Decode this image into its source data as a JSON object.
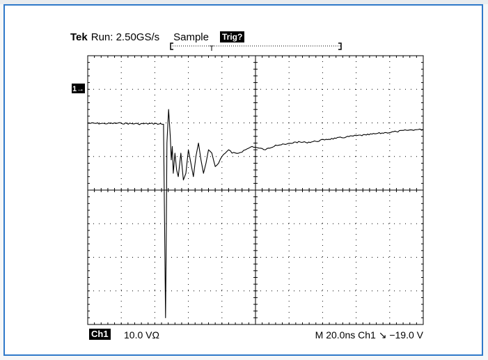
{
  "header": {
    "brand": "Tek",
    "run_status": "Run: 2.50GS/s",
    "acquire_mode": "Sample",
    "trigger_status": "Trig?"
  },
  "footer": {
    "channel": "Ch1",
    "volts_per_div": "10.0 VΩ",
    "timebase_trigger": "M 20.0ns  Ch1 ↘  −19.0 V"
  },
  "trigger_marker": "T",
  "channel_marker": "1→",
  "colors": {
    "frame": "#2f79c9",
    "trace": "#000000",
    "grid": "#000000"
  },
  "chart_data": {
    "type": "line",
    "title": "",
    "xlabel": "",
    "ylabel": "",
    "grid": true,
    "x_unit": "ns",
    "y_unit": "V",
    "xlim": [
      -46,
      154
    ],
    "ylim": [
      -40,
      40
    ],
    "x_divisions": 10,
    "y_divisions": 8,
    "series": [
      {
        "x": [
          -46,
          -36,
          -26,
          -16,
          -6,
          -0.8,
          0.4,
          0.8,
          1.2,
          1.8,
          2.2,
          2.6,
          3.2,
          3.8,
          4.4,
          5,
          6,
          7,
          8,
          9.5,
          11,
          12.5,
          14,
          15.5,
          17,
          18.5,
          20,
          21.5,
          23,
          24.5,
          26,
          28,
          30,
          32,
          34,
          36,
          38,
          40,
          44,
          48,
          52,
          56,
          60,
          66,
          72,
          78,
          84,
          90,
          96,
          102,
          108,
          114,
          120,
          126,
          132,
          138,
          144,
          150,
          154
        ],
        "y": [
          19.9,
          19.8,
          19.9,
          19.7,
          19.8,
          19.6,
          -38,
          -15,
          14,
          20,
          24,
          21,
          16,
          9,
          13,
          5,
          11,
          6,
          4,
          11,
          3,
          5,
          12,
          8,
          4,
          10,
          14,
          9,
          5,
          8,
          12,
          11,
          7,
          8,
          10,
          11,
          12,
          11,
          11,
          12,
          13,
          12.5,
          12,
          13.4,
          13.6,
          14.3,
          14.2,
          14.5,
          15.1,
          15.4,
          15.8,
          16.2,
          16.4,
          16.8,
          17.1,
          17.4,
          17.8,
          18.0,
          18.0
        ]
      }
    ]
  }
}
